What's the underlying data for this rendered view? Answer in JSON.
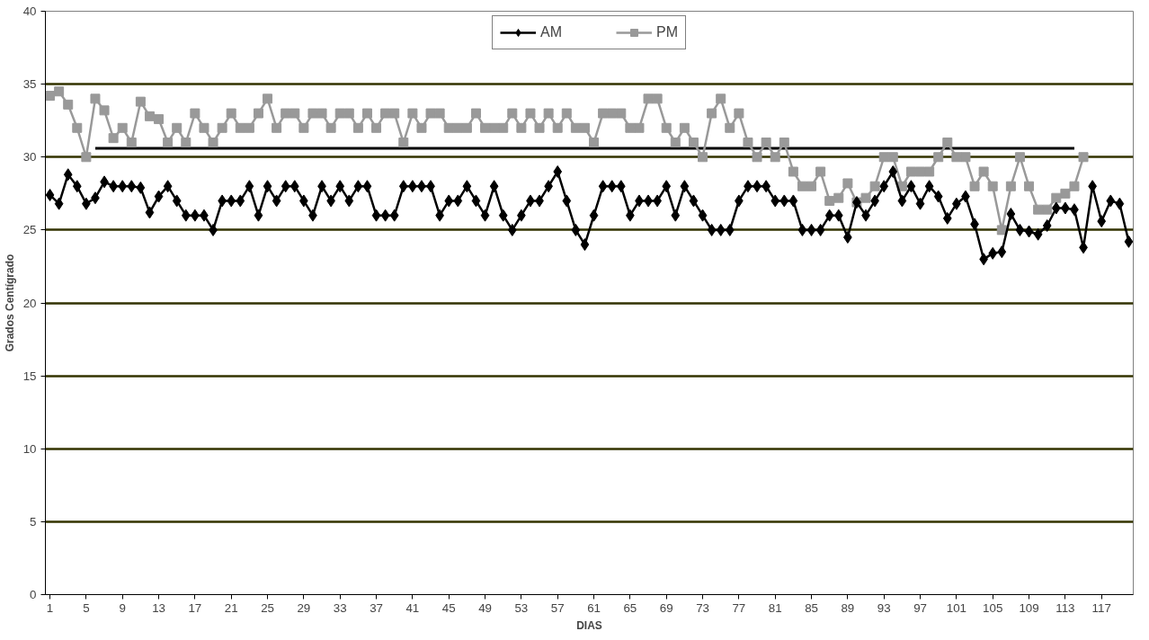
{
  "chart_data": {
    "type": "line",
    "xlabel": "DIAS",
    "ylabel": "Grados Centígrado",
    "xlim": [
      0.5,
      120.5
    ],
    "xticks": [
      1,
      5,
      9,
      13,
      17,
      21,
      25,
      29,
      33,
      37,
      41,
      45,
      49,
      53,
      57,
      61,
      65,
      69,
      73,
      77,
      81,
      85,
      89,
      93,
      97,
      101,
      105,
      109,
      113,
      117
    ],
    "ylim": [
      0,
      40
    ],
    "yticks": [
      0,
      5,
      10,
      15,
      20,
      25,
      30,
      35,
      40
    ],
    "grid": "y",
    "legend": "top",
    "series": [
      {
        "name": "AM",
        "color": "#000000",
        "marker": "diamond",
        "x": [
          1,
          2,
          3,
          4,
          5,
          6,
          7,
          8,
          9,
          10,
          11,
          12,
          13,
          14,
          15,
          16,
          17,
          18,
          19,
          20,
          21,
          22,
          23,
          24,
          25,
          26,
          27,
          28,
          29,
          30,
          31,
          32,
          33,
          34,
          35,
          36,
          37,
          38,
          39,
          40,
          41,
          42,
          43,
          44,
          45,
          46,
          47,
          48,
          49,
          50,
          51,
          52,
          53,
          54,
          55,
          56,
          57,
          58,
          59,
          60,
          61,
          62,
          63,
          64,
          65,
          66,
          67,
          68,
          69,
          70,
          71,
          72,
          73,
          74,
          75,
          76,
          77,
          78,
          79,
          80,
          81,
          82,
          83,
          84,
          85,
          86,
          87,
          88,
          89,
          90,
          91,
          92,
          93,
          94,
          95,
          96,
          97,
          98,
          99,
          100,
          101,
          102,
          103,
          104,
          105,
          106,
          107,
          108,
          109,
          110,
          111,
          112,
          113,
          114,
          115,
          116,
          117,
          118,
          119,
          120
        ],
        "values": [
          27.4,
          26.8,
          28.8,
          28,
          26.8,
          27.2,
          28.3,
          28,
          28,
          28,
          27.9,
          26.2,
          27.3,
          28,
          27,
          26,
          26,
          26,
          25,
          27,
          27,
          27,
          28,
          26,
          28,
          27,
          28,
          28,
          27,
          26,
          28,
          27,
          28,
          27,
          28,
          28,
          26,
          26,
          26,
          28,
          28,
          28,
          28,
          26,
          27,
          27,
          28,
          27,
          26,
          28,
          26,
          25,
          26,
          27,
          27,
          28,
          29,
          27,
          25,
          24,
          26,
          28,
          28,
          28,
          26,
          27,
          27,
          27,
          28,
          26,
          28,
          27,
          26,
          25,
          25,
          25,
          27,
          28,
          28,
          28,
          27,
          27,
          27,
          25,
          25,
          25,
          26,
          26,
          24.5,
          26.9,
          26,
          27,
          28,
          29,
          27,
          28,
          26.8,
          28,
          27.3,
          25.8,
          26.8,
          27.3,
          25.4,
          23,
          23.4,
          23.5,
          26.1,
          25,
          24.9,
          24.7,
          25.3,
          26.5,
          26.5,
          26.4,
          23.8,
          28,
          25.6,
          27,
          26.8,
          24.2
        ]
      },
      {
        "name": "PM",
        "color": "#999999",
        "marker": "square",
        "x": [
          1,
          2,
          3,
          4,
          5,
          6,
          7,
          8,
          9,
          10,
          11,
          12,
          13,
          14,
          15,
          16,
          17,
          18,
          19,
          20,
          21,
          22,
          23,
          24,
          25,
          26,
          27,
          28,
          29,
          30,
          31,
          32,
          33,
          34,
          35,
          36,
          37,
          38,
          39,
          40,
          41,
          42,
          43,
          44,
          45,
          46,
          47,
          48,
          49,
          50,
          51,
          52,
          53,
          54,
          55,
          56,
          57,
          58,
          59,
          60,
          61,
          62,
          63,
          64,
          65,
          66,
          67,
          68,
          69,
          70,
          71,
          72,
          73,
          74,
          75,
          76,
          77,
          78,
          79,
          80,
          81,
          82,
          83,
          84,
          85,
          86,
          87,
          88,
          89,
          90,
          91,
          92,
          93,
          94,
          95,
          96,
          97,
          98,
          99,
          100,
          101,
          102,
          103,
          104,
          105,
          106,
          107,
          108,
          109,
          110,
          111,
          112,
          113,
          114,
          115
        ],
        "values": [
          34.2,
          34.5,
          33.6,
          32,
          30,
          34,
          33.2,
          31.3,
          32,
          31,
          33.8,
          32.8,
          32.6,
          31,
          32,
          31,
          33,
          32,
          31,
          32,
          33,
          32,
          32,
          33,
          34,
          32,
          33,
          33,
          32,
          33,
          33,
          32,
          33,
          33,
          32,
          33,
          32,
          33,
          33,
          31,
          33,
          32,
          33,
          33,
          32,
          32,
          32,
          33,
          32,
          32,
          32,
          33,
          32,
          33,
          32,
          33,
          32,
          33,
          32,
          32,
          31,
          33,
          33,
          33,
          32,
          32,
          34,
          34,
          32,
          31,
          32,
          31,
          30,
          33,
          34,
          32,
          33,
          31,
          30,
          31,
          30,
          31,
          29,
          28,
          28,
          29,
          27,
          27.2,
          28.2,
          26.9,
          27.2,
          28,
          30,
          30,
          28,
          29,
          29,
          29,
          30,
          31,
          30,
          30,
          28,
          29,
          28,
          25,
          28,
          30,
          28,
          26.4,
          26.4,
          27.2,
          27.5,
          28,
          30
        ]
      },
      {
        "color": "#000000",
        "marker": "none",
        "x": [
          6,
          114
        ],
        "values": [
          30.6,
          30.6
        ]
      }
    ]
  }
}
